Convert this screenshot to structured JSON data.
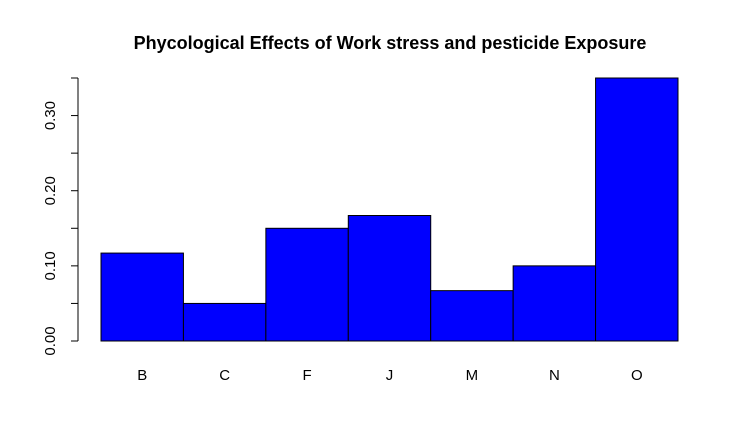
{
  "chart_data": {
    "type": "bar",
    "title": "Phycological Effects of Work stress and pesticide Exposure",
    "xlabel": "",
    "ylabel": "",
    "categories": [
      "B",
      "C",
      "F",
      "J",
      "M",
      "N",
      "O"
    ],
    "values": [
      0.117,
      0.05,
      0.15,
      0.167,
      0.067,
      0.1,
      0.35
    ],
    "ylim": [
      0,
      0.35
    ],
    "yticks": [
      0.0,
      0.1,
      0.2,
      0.3
    ],
    "ytick_labels": [
      "0.00",
      "0.10",
      "0.20",
      "0.30"
    ],
    "minor_yticks": [
      0.05,
      0.15,
      0.25,
      0.35
    ],
    "grid": false,
    "colors": {
      "bar_fill": "#0000ff",
      "bar_stroke": "#000000",
      "axis": "#000000"
    }
  }
}
